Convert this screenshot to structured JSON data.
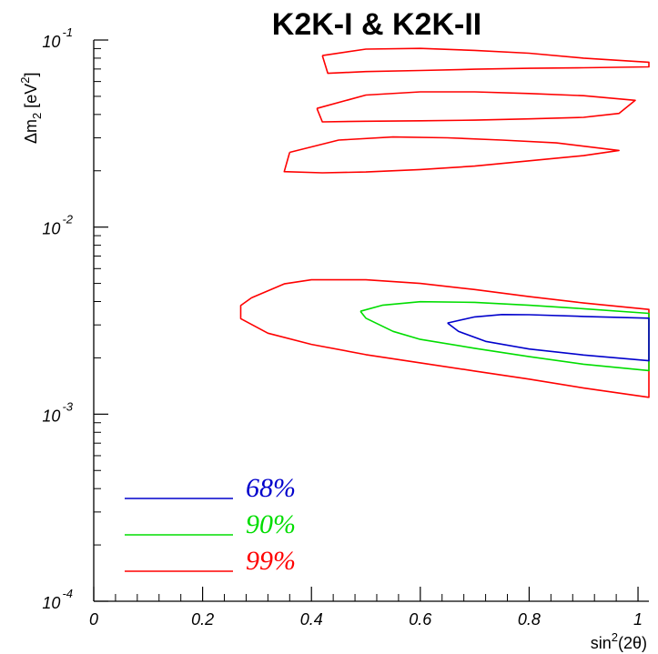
{
  "chart_data": {
    "type": "line",
    "title": "K2K-I & K2K-II",
    "xlabel": {
      "base": "sin",
      "sup": "2",
      "rest": "(2θ)"
    },
    "ylabel": {
      "delta": "Δm",
      "sub": "2",
      "bracket_open": " [eV",
      "sup": "2",
      "bracket_close": "]"
    },
    "xlim": [
      0,
      1.02
    ],
    "ylim": [
      0.0001,
      0.1
    ],
    "yscale": "log",
    "x_ticks": [
      {
        "value": 0,
        "label": "0"
      },
      {
        "value": 0.2,
        "label": "0.2"
      },
      {
        "value": 0.4,
        "label": "0.4"
      },
      {
        "value": 0.6,
        "label": "0.6"
      },
      {
        "value": 0.8,
        "label": "0.8"
      },
      {
        "value": 1.0,
        "label": "1"
      }
    ],
    "y_ticks": [
      {
        "value": 0.1,
        "base": "10",
        "exp": "-1"
      },
      {
        "value": 0.01,
        "base": "10",
        "exp": "-2"
      },
      {
        "value": 0.001,
        "base": "10",
        "exp": "-3"
      },
      {
        "value": 0.0001,
        "base": "10",
        "exp": "-4"
      }
    ],
    "grid": false,
    "legend": {
      "placement": "bottom-left",
      "entries": [
        {
          "label": "68%",
          "color": "#0000cc"
        },
        {
          "label": "90%",
          "color": "#00dd00"
        },
        {
          "label": "99%",
          "color": "#ff0000"
        }
      ]
    },
    "series": [
      {
        "name": "99%",
        "color": "#ff0000",
        "contours": [
          [
            [
              0.42,
              0.0826
            ],
            [
              0.5,
              0.0894
            ],
            [
              0.6,
              0.0902
            ],
            [
              0.7,
              0.088
            ],
            [
              0.8,
              0.085
            ],
            [
              0.9,
              0.08
            ],
            [
              1.02,
              0.0761
            ],
            [
              1.02,
              0.0719
            ],
            [
              0.9,
              0.0711
            ],
            [
              0.8,
              0.0706
            ],
            [
              0.7,
              0.0698
            ],
            [
              0.6,
              0.0687
            ],
            [
              0.5,
              0.0678
            ],
            [
              0.43,
              0.0664
            ],
            [
              0.42,
              0.0826
            ]
          ],
          [
            [
              0.41,
              0.0431
            ],
            [
              0.5,
              0.0508
            ],
            [
              0.6,
              0.0528
            ],
            [
              0.7,
              0.0528
            ],
            [
              0.8,
              0.0518
            ],
            [
              0.9,
              0.0504
            ],
            [
              0.995,
              0.0476
            ],
            [
              0.965,
              0.0405
            ],
            [
              0.9,
              0.0386
            ],
            [
              0.8,
              0.0379
            ],
            [
              0.7,
              0.0373
            ],
            [
              0.6,
              0.037
            ],
            [
              0.5,
              0.0368
            ],
            [
              0.42,
              0.0365
            ],
            [
              0.41,
              0.0431
            ]
          ],
          [
            [
              0.36,
              0.0251
            ],
            [
              0.45,
              0.0292
            ],
            [
              0.55,
              0.0303
            ],
            [
              0.65,
              0.03
            ],
            [
              0.75,
              0.0292
            ],
            [
              0.85,
              0.0282
            ],
            [
              0.965,
              0.0257
            ],
            [
              0.9,
              0.0241
            ],
            [
              0.8,
              0.0226
            ],
            [
              0.7,
              0.0212
            ],
            [
              0.6,
              0.0203
            ],
            [
              0.5,
              0.0197
            ],
            [
              0.42,
              0.0195
            ],
            [
              0.35,
              0.0198
            ],
            [
              0.36,
              0.0251
            ]
          ],
          [
            [
              0.29,
              0.00419
            ],
            [
              0.35,
              0.00497
            ],
            [
              0.4,
              0.00523
            ],
            [
              0.5,
              0.00523
            ],
            [
              0.6,
              0.005
            ],
            [
              0.7,
              0.00464
            ],
            [
              0.8,
              0.00425
            ],
            [
              0.9,
              0.00393
            ],
            [
              1.02,
              0.00363
            ],
            [
              1.02,
              0.00123
            ],
            [
              0.9,
              0.00138
            ],
            [
              0.8,
              0.00154
            ],
            [
              0.7,
              0.0017
            ],
            [
              0.6,
              0.00188
            ],
            [
              0.5,
              0.00208
            ],
            [
              0.4,
              0.00236
            ],
            [
              0.32,
              0.00271
            ],
            [
              0.27,
              0.00324
            ],
            [
              0.27,
              0.00381
            ],
            [
              0.29,
              0.00419
            ]
          ]
        ]
      },
      {
        "name": "90%",
        "color": "#00dd00",
        "contours": [
          [
            [
              0.49,
              0.00355
            ],
            [
              0.53,
              0.00382
            ],
            [
              0.6,
              0.00399
            ],
            [
              0.7,
              0.00396
            ],
            [
              0.8,
              0.00382
            ],
            [
              0.9,
              0.00366
            ],
            [
              1.02,
              0.00346
            ],
            [
              1.02,
              0.00171
            ],
            [
              0.9,
              0.00185
            ],
            [
              0.8,
              0.00203
            ],
            [
              0.7,
              0.00225
            ],
            [
              0.6,
              0.00251
            ],
            [
              0.55,
              0.00277
            ],
            [
              0.5,
              0.00326
            ],
            [
              0.49,
              0.00355
            ]
          ]
        ]
      },
      {
        "name": "68%",
        "color": "#0000cc",
        "contours": [
          [
            [
              0.65,
              0.00307
            ],
            [
              0.7,
              0.00331
            ],
            [
              0.75,
              0.00341
            ],
            [
              0.8,
              0.0034
            ],
            [
              0.9,
              0.00333
            ],
            [
              1.02,
              0.00326
            ],
            [
              1.02,
              0.00193
            ],
            [
              0.9,
              0.00207
            ],
            [
              0.8,
              0.00223
            ],
            [
              0.72,
              0.00245
            ],
            [
              0.67,
              0.00277
            ],
            [
              0.65,
              0.00307
            ]
          ]
        ]
      }
    ]
  }
}
